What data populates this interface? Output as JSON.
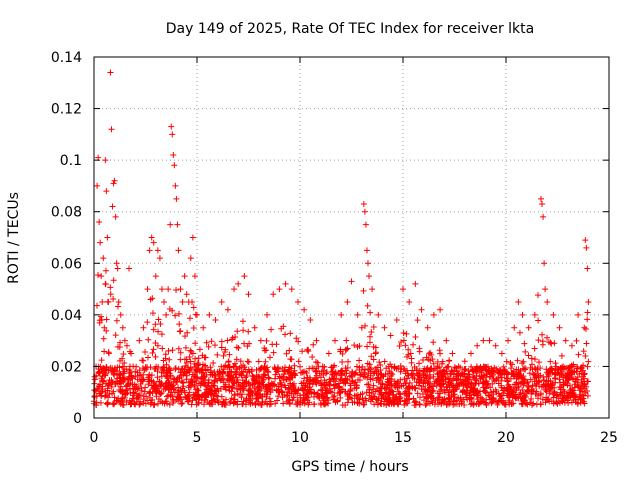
{
  "chart_data": {
    "type": "scatter",
    "title": "Day 149 of 2025, Rate Of TEC Index for receiver lkta",
    "xlabel": "GPS time / hours",
    "ylabel": "ROTI / TECUs",
    "xlim": [
      0,
      25
    ],
    "ylim": [
      0,
      0.14
    ],
    "xticks": [
      0,
      5,
      10,
      15,
      20,
      25
    ],
    "xtick_labels": [
      "0",
      "5",
      "10",
      "15",
      "20",
      "25"
    ],
    "yticks": [
      0,
      0.02,
      0.04,
      0.06,
      0.08,
      0.1,
      0.12,
      0.14
    ],
    "ytick_labels": [
      "0",
      "0.02",
      "0.04",
      "0.06",
      "0.08",
      "0.1",
      "0.12",
      "0.14"
    ],
    "grid": true,
    "marker": "+",
    "color": "#ff0000",
    "series": [
      {
        "name": "ROTI",
        "points": [
          [
            0.05,
            0.015
          ],
          [
            0.1,
            0.02
          ],
          [
            0.15,
            0.09
          ],
          [
            0.2,
            0.101
          ],
          [
            0.25,
            0.076
          ],
          [
            0.3,
            0.068
          ],
          [
            0.35,
            0.055
          ],
          [
            0.4,
            0.045
          ],
          [
            0.45,
            0.062
          ],
          [
            0.5,
            0.035
          ],
          [
            0.55,
            0.1
          ],
          [
            0.6,
            0.088
          ],
          [
            0.65,
            0.07
          ],
          [
            0.7,
            0.045
          ],
          [
            0.8,
            0.134
          ],
          [
            0.85,
            0.112
          ],
          [
            0.9,
            0.082
          ],
          [
            0.95,
            0.091
          ],
          [
            1.0,
            0.092
          ],
          [
            1.05,
            0.078
          ],
          [
            1.1,
            0.06
          ],
          [
            1.15,
            0.058
          ],
          [
            1.2,
            0.045
          ],
          [
            1.3,
            0.04
          ],
          [
            1.4,
            0.035
          ],
          [
            1.5,
            0.03
          ],
          [
            1.6,
            0.028
          ],
          [
            1.7,
            0.058
          ],
          [
            1.8,
            0.025
          ],
          [
            1.9,
            0.02
          ],
          [
            2.0,
            0.018
          ],
          [
            2.2,
            0.03
          ],
          [
            2.4,
            0.035
          ],
          [
            2.6,
            0.05
          ],
          [
            2.7,
            0.065
          ],
          [
            2.8,
            0.07
          ],
          [
            2.9,
            0.068
          ],
          [
            3.0,
            0.055
          ],
          [
            3.1,
            0.065
          ],
          [
            3.2,
            0.062
          ],
          [
            3.3,
            0.05
          ],
          [
            3.4,
            0.045
          ],
          [
            3.5,
            0.04
          ],
          [
            3.6,
            0.05
          ],
          [
            3.7,
            0.075
          ],
          [
            3.75,
            0.113
          ],
          [
            3.8,
            0.11
          ],
          [
            3.85,
            0.102
          ],
          [
            3.9,
            0.098
          ],
          [
            3.95,
            0.09
          ],
          [
            4.0,
            0.085
          ],
          [
            4.05,
            0.075
          ],
          [
            4.1,
            0.065
          ],
          [
            4.2,
            0.05
          ],
          [
            4.3,
            0.045
          ],
          [
            4.4,
            0.055
          ],
          [
            4.5,
            0.048
          ],
          [
            4.6,
            0.045
          ],
          [
            4.7,
            0.062
          ],
          [
            4.8,
            0.07
          ],
          [
            4.9,
            0.055
          ],
          [
            5.0,
            0.04
          ],
          [
            5.3,
            0.035
          ],
          [
            5.6,
            0.04
          ],
          [
            5.9,
            0.038
          ],
          [
            6.2,
            0.045
          ],
          [
            6.5,
            0.042
          ],
          [
            6.8,
            0.05
          ],
          [
            7.0,
            0.052
          ],
          [
            7.3,
            0.055
          ],
          [
            7.5,
            0.048
          ],
          [
            7.8,
            0.035
          ],
          [
            8.1,
            0.03
          ],
          [
            8.4,
            0.04
          ],
          [
            8.7,
            0.048
          ],
          [
            9.0,
            0.05
          ],
          [
            9.3,
            0.052
          ],
          [
            9.6,
            0.05
          ],
          [
            9.9,
            0.045
          ],
          [
            10.2,
            0.042
          ],
          [
            10.5,
            0.038
          ],
          [
            10.8,
            0.03
          ],
          [
            11.1,
            0.02
          ],
          [
            11.4,
            0.025
          ],
          [
            11.7,
            0.03
          ],
          [
            12.0,
            0.04
          ],
          [
            12.3,
            0.045
          ],
          [
            12.5,
            0.053
          ],
          [
            12.8,
            0.04
          ],
          [
            13.0,
            0.035
          ],
          [
            13.1,
            0.083
          ],
          [
            13.15,
            0.08
          ],
          [
            13.2,
            0.075
          ],
          [
            13.25,
            0.065
          ],
          [
            13.3,
            0.06
          ],
          [
            13.35,
            0.055
          ],
          [
            13.5,
            0.05
          ],
          [
            13.8,
            0.04
          ],
          [
            14.1,
            0.035
          ],
          [
            14.4,
            0.032
          ],
          [
            14.7,
            0.038
          ],
          [
            15.0,
            0.05
          ],
          [
            15.3,
            0.045
          ],
          [
            15.6,
            0.052
          ],
          [
            15.9,
            0.042
          ],
          [
            16.2,
            0.035
          ],
          [
            16.5,
            0.04
          ],
          [
            16.8,
            0.042
          ],
          [
            17.1,
            0.03
          ],
          [
            17.4,
            0.025
          ],
          [
            17.7,
            0.02
          ],
          [
            18.0,
            0.022
          ],
          [
            18.3,
            0.025
          ],
          [
            18.6,
            0.028
          ],
          [
            18.9,
            0.03
          ],
          [
            19.2,
            0.03
          ],
          [
            19.5,
            0.028
          ],
          [
            19.8,
            0.025
          ],
          [
            20.1,
            0.03
          ],
          [
            20.4,
            0.035
          ],
          [
            20.6,
            0.045
          ],
          [
            20.8,
            0.04
          ],
          [
            21.1,
            0.035
          ],
          [
            21.4,
            0.04
          ],
          [
            21.7,
            0.085
          ],
          [
            21.75,
            0.083
          ],
          [
            21.8,
            0.078
          ],
          [
            21.85,
            0.06
          ],
          [
            21.9,
            0.05
          ],
          [
            22.0,
            0.045
          ],
          [
            22.3,
            0.04
          ],
          [
            22.6,
            0.035
          ],
          [
            22.9,
            0.03
          ],
          [
            23.2,
            0.028
          ],
          [
            23.5,
            0.04
          ],
          [
            23.8,
            0.035
          ],
          [
            23.85,
            0.069
          ],
          [
            23.9,
            0.066
          ],
          [
            23.95,
            0.058
          ],
          [
            24.0,
            0.045
          ]
        ]
      }
    ],
    "baseline": {
      "range": [
        0,
        24
      ],
      "typical_min": 0.005,
      "typical_max": 0.02
    }
  }
}
